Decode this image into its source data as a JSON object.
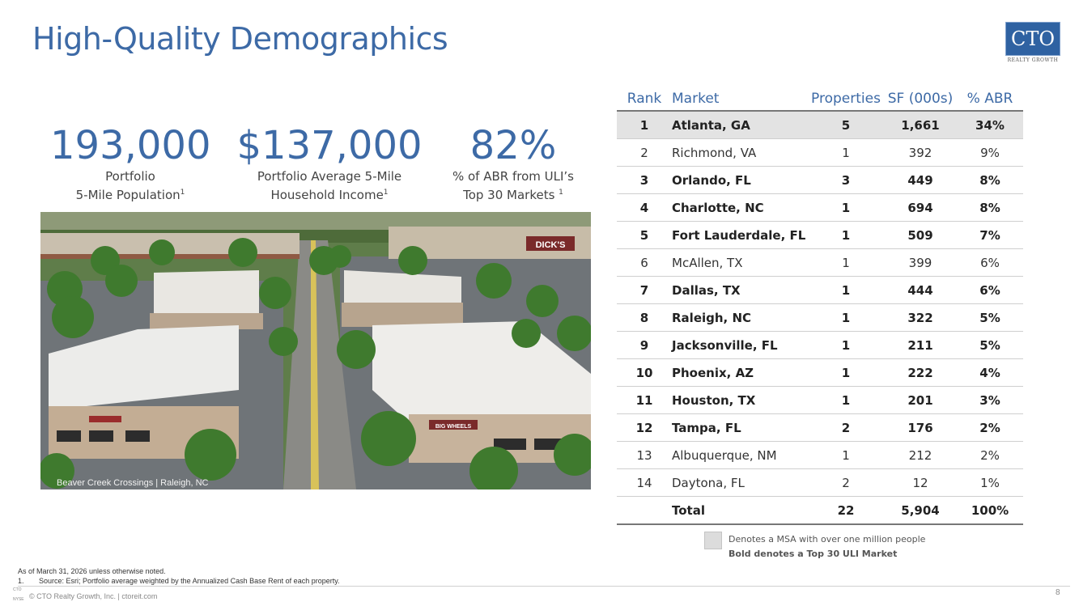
{
  "title": "High-Quality Demographics",
  "logo": {
    "text": "CTO",
    "sub": "REALTY GROWTH"
  },
  "stats": [
    {
      "value": "193,000",
      "label1": "Portfolio",
      "label2": "5-Mile Population",
      "note": "1"
    },
    {
      "value": "$137,000",
      "label1": "Portfolio Average 5-Mile",
      "label2": "Household Income",
      "note": "1"
    },
    {
      "value": "82%",
      "label1": "% of ABR from ULI’s",
      "label2": "Top 30 Markets ",
      "note": "1"
    }
  ],
  "photo": {
    "caption": "Beaver Creek Crossings | Raleigh, NC",
    "sign1": "DICK'S",
    "sign2": "BIG WHEELS"
  },
  "table": {
    "headers": [
      "Rank",
      "Market",
      "Properties",
      "SF (000s)",
      "% ABR"
    ],
    "rows": [
      {
        "rank": "1",
        "market": "Atlanta, GA",
        "properties": "5",
        "sf": "1,661",
        "abr": "34%",
        "million_msa": true,
        "uli_top30": true
      },
      {
        "rank": "2",
        "market": "Richmond, VA",
        "properties": "1",
        "sf": "392",
        "abr": "9%",
        "million_msa": false,
        "uli_top30": false
      },
      {
        "rank": "3",
        "market": "Orlando, FL",
        "properties": "3",
        "sf": "449",
        "abr": "8%",
        "million_msa": false,
        "uli_top30": true
      },
      {
        "rank": "4",
        "market": "Charlotte, NC",
        "properties": "1",
        "sf": "694",
        "abr": "8%",
        "million_msa": false,
        "uli_top30": true
      },
      {
        "rank": "5",
        "market": "Fort Lauderdale, FL",
        "properties": "1",
        "sf": "509",
        "abr": "7%",
        "million_msa": false,
        "uli_top30": true
      },
      {
        "rank": "6",
        "market": "McAllen, TX",
        "properties": "1",
        "sf": "399",
        "abr": "6%",
        "million_msa": false,
        "uli_top30": false
      },
      {
        "rank": "7",
        "market": "Dallas, TX",
        "properties": "1",
        "sf": "444",
        "abr": "6%",
        "million_msa": false,
        "uli_top30": true
      },
      {
        "rank": "8",
        "market": "Raleigh, NC",
        "properties": "1",
        "sf": "322",
        "abr": "5%",
        "million_msa": false,
        "uli_top30": true
      },
      {
        "rank": "9",
        "market": "Jacksonville, FL",
        "properties": "1",
        "sf": "211",
        "abr": "5%",
        "million_msa": false,
        "uli_top30": true
      },
      {
        "rank": "10",
        "market": "Phoenix, AZ",
        "properties": "1",
        "sf": "222",
        "abr": "4%",
        "million_msa": false,
        "uli_top30": true
      },
      {
        "rank": "11",
        "market": "Houston, TX",
        "properties": "1",
        "sf": "201",
        "abr": "3%",
        "million_msa": false,
        "uli_top30": true
      },
      {
        "rank": "12",
        "market": "Tampa, FL",
        "properties": "2",
        "sf": "176",
        "abr": "2%",
        "million_msa": false,
        "uli_top30": true
      },
      {
        "rank": "13",
        "market": "Albuquerque, NM",
        "properties": "1",
        "sf": "212",
        "abr": "2%",
        "million_msa": false,
        "uli_top30": false
      },
      {
        "rank": "14",
        "market": "Daytona, FL",
        "properties": "2",
        "sf": "12",
        "abr": "1%",
        "million_msa": false,
        "uli_top30": false
      }
    ],
    "total": {
      "label": "Total",
      "properties": "22",
      "sf": "5,904",
      "abr": "100%"
    }
  },
  "legend": {
    "msa_text": "Denotes a MSA with over one million people",
    "bold_text": "Bold denotes a Top 30 ULI Market"
  },
  "footnotes": {
    "asof": "As of March 31, 2026 unless otherwise noted.",
    "note1_num": "1.",
    "note1": "Source: Esri; Portfolio average weighted by the Annualized Cash Base Rent of each property."
  },
  "footer": {
    "exchange_top": "CTO",
    "exchange_bottom": "NYSE",
    "copyright": "© CTO Realty Growth, Inc. | ctoreit.com",
    "page": "8"
  }
}
